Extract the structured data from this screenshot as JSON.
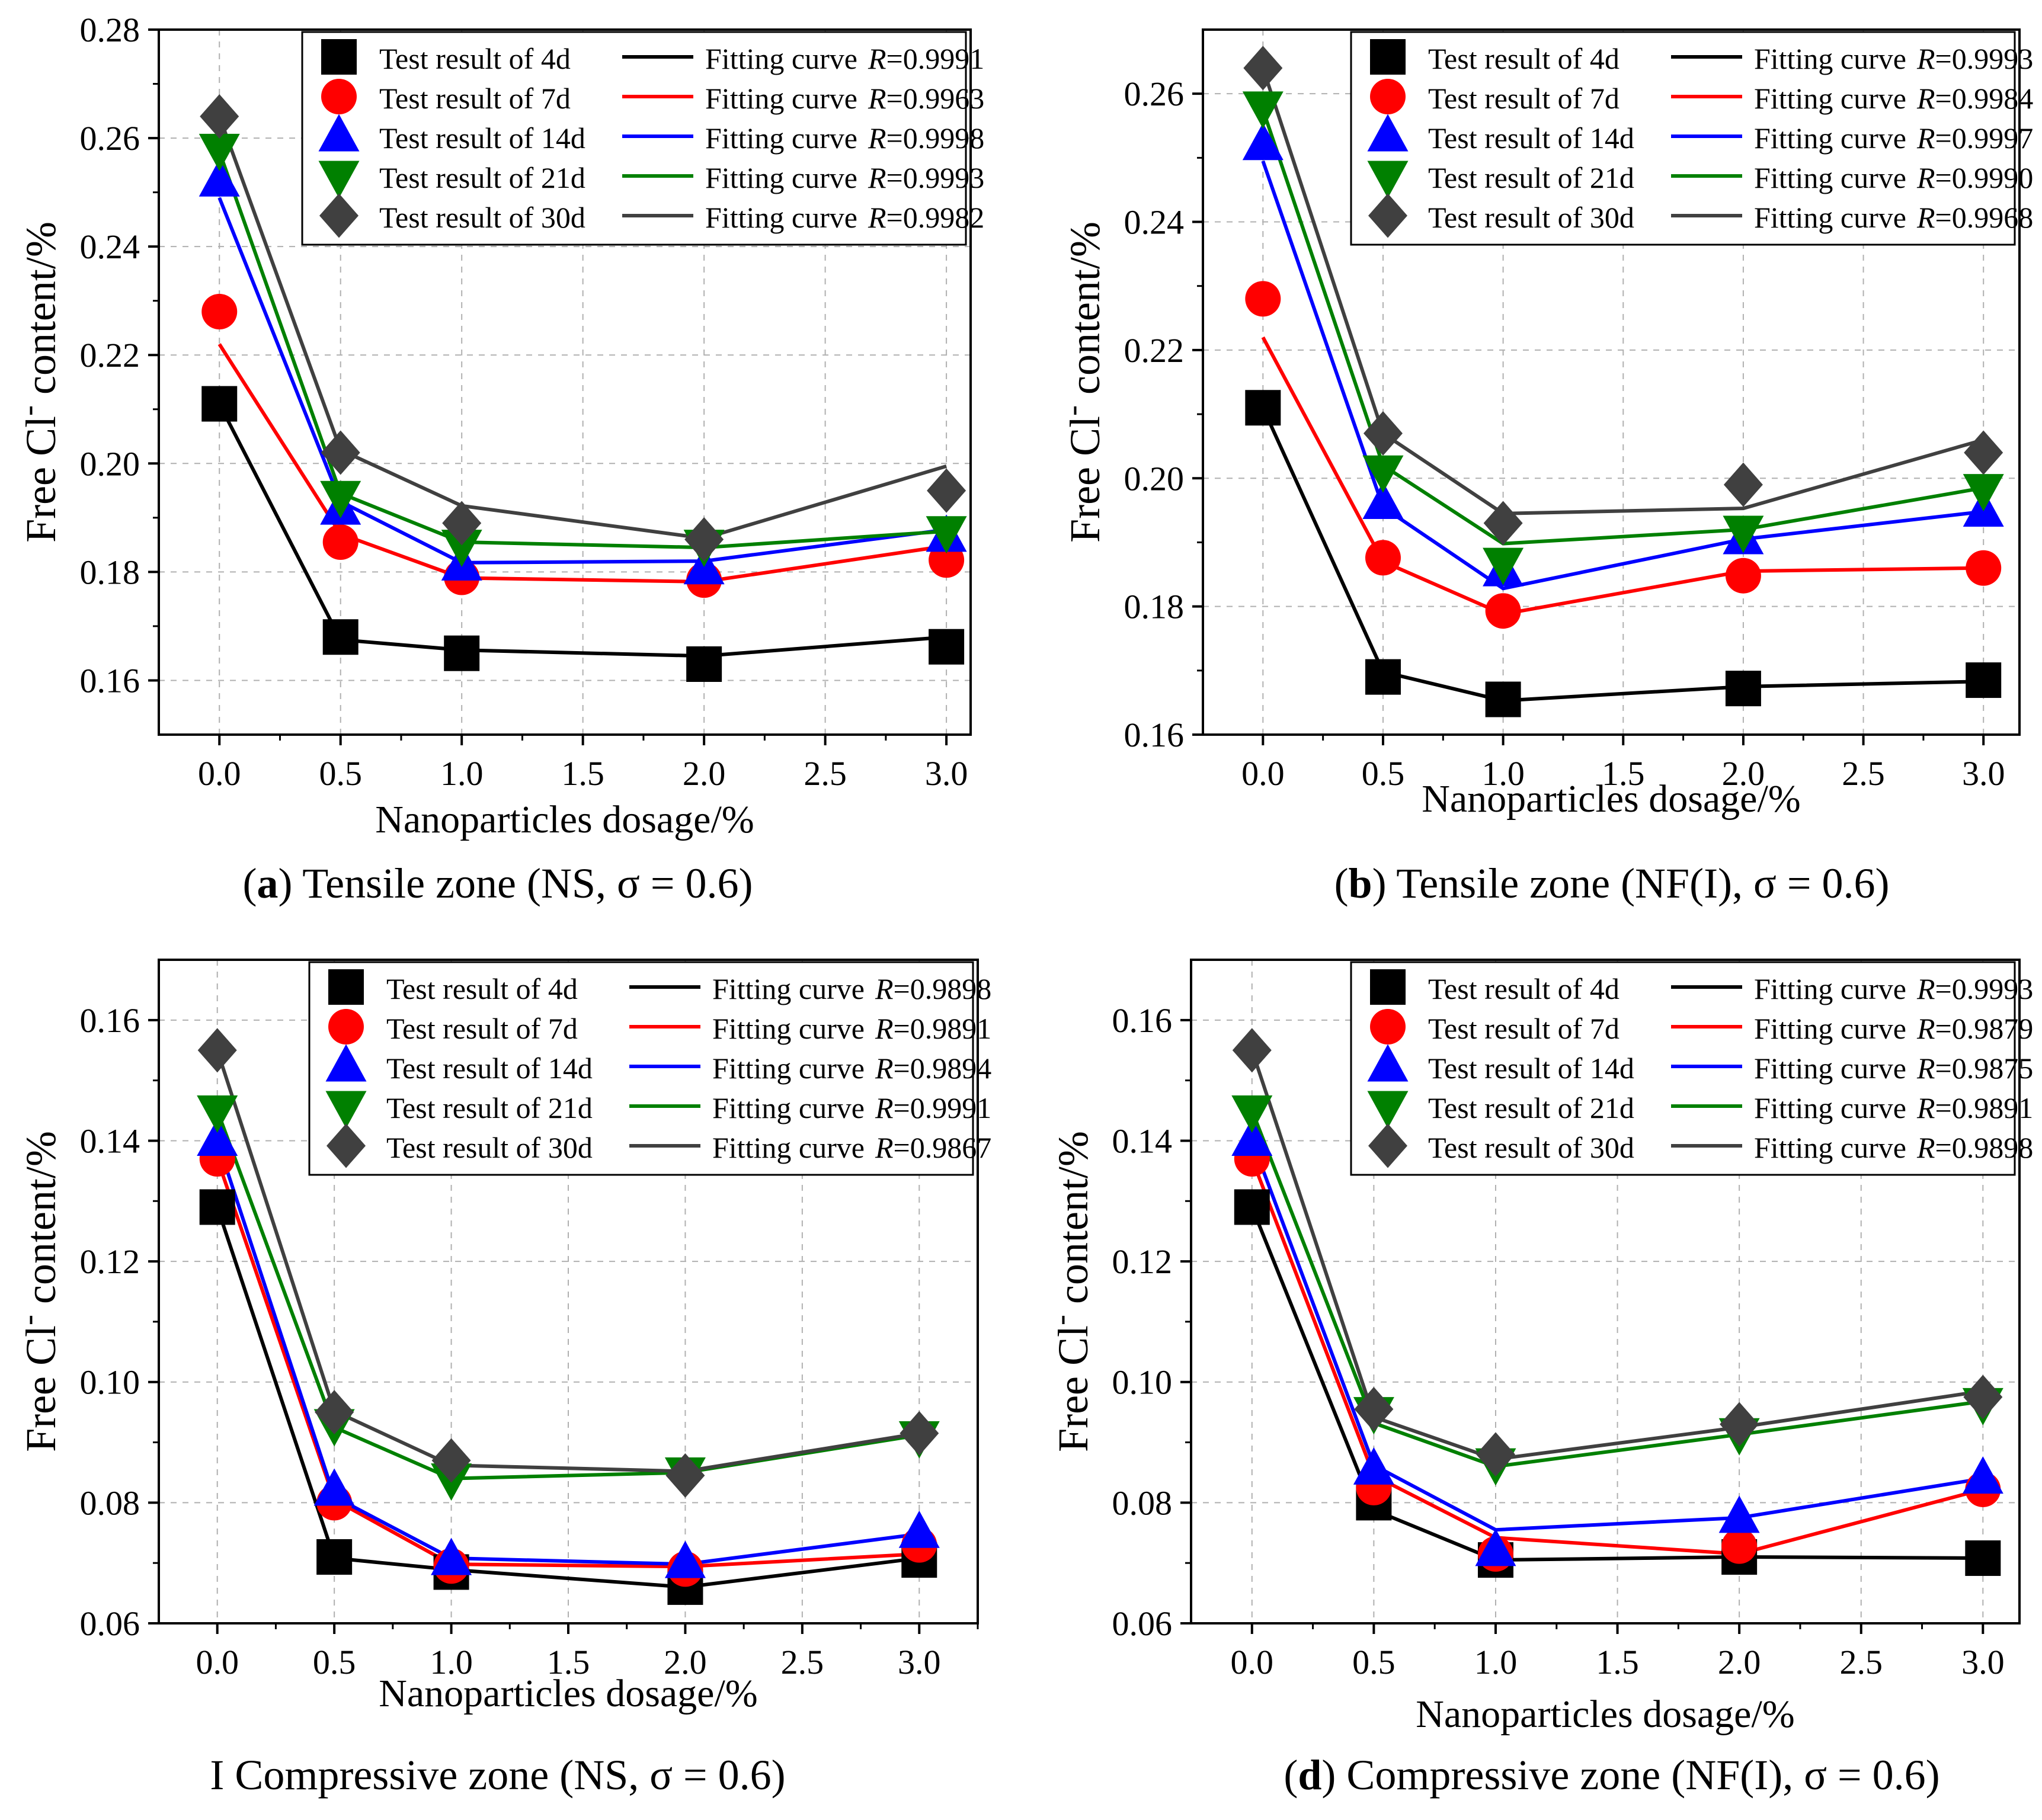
{
  "figure_title": "",
  "chart_data": [
    {
      "id": "a",
      "type": "line",
      "panel_letter": "a",
      "caption_prefix": "(",
      "caption_suffix": ") Tensile zone (NS, σ = 0.6)",
      "xlabel": "Nanoparticles dosage/%",
      "ylabel_main": "Free Cl",
      "ylabel_sup": "-",
      "ylabel_tail": " content/%",
      "xlim": [
        -0.25,
        3.1
      ],
      "ylim": [
        0.15,
        0.28
      ],
      "x_ticks": [
        "0.0",
        "0.5",
        "1.0",
        "1.5",
        "2.0",
        "2.5",
        "3.0"
      ],
      "y_ticks": [
        "0.16",
        "0.18",
        "0.20",
        "0.22",
        "0.24",
        "0.26",
        "0.28"
      ],
      "x": [
        0,
        0.5,
        1,
        2,
        3
      ],
      "series": [
        {
          "name": "Test result of 4d",
          "marker": "square",
          "color": "#000000",
          "values": [
            0.211,
            0.168,
            0.165,
            0.163,
            0.1662
          ],
          "fit_label": "Fitting curve",
          "r_label": "R",
          "r_value": "=0.9991",
          "fit": [
            0.211,
            0.1675,
            0.1656,
            0.1645,
            0.168
          ]
        },
        {
          "name": "Test result of 7d",
          "marker": "circle",
          "color": "#ff0000",
          "values": [
            0.228,
            0.1855,
            0.179,
            0.1785,
            0.1822
          ],
          "fit_label": "Fitting curve",
          "r_label": "R",
          "r_value": "=0.9963",
          "fit": [
            0.222,
            0.187,
            0.1789,
            0.1782,
            0.1848
          ]
        },
        {
          "name": "Test result of 14d",
          "marker": "triangle-up",
          "color": "#0000ff",
          "values": [
            0.252,
            0.1915,
            0.1812,
            0.1805,
            0.1865
          ],
          "fit_label": "Fitting curve",
          "r_label": "R",
          "r_value": "=0.9998",
          "fit": [
            0.249,
            0.193,
            0.1817,
            0.182,
            0.1878
          ]
        },
        {
          "name": "Test result of 21d",
          "marker": "triangle-down",
          "color": "#008000",
          "values": [
            0.258,
            0.194,
            0.185,
            0.185,
            0.1875
          ],
          "fit_label": "Fitting curve",
          "r_label": "R",
          "r_value": "=0.9993",
          "fit": [
            0.2575,
            0.1945,
            0.1855,
            0.1845,
            0.1875
          ]
        },
        {
          "name": "Test result of 30d",
          "marker": "diamond",
          "color": "#404040",
          "values": [
            0.264,
            0.202,
            0.189,
            0.186,
            0.195
          ],
          "fit_label": "Fitting curve",
          "r_label": "R",
          "r_value": "=0.9982",
          "fit": [
            0.264,
            0.2025,
            0.1922,
            0.1862,
            0.1995
          ]
        }
      ]
    },
    {
      "id": "b",
      "type": "line",
      "panel_letter": "b",
      "caption_prefix": "(",
      "caption_suffix": ") Tensile zone (NF(I), σ = 0.6)",
      "xlabel": "Nanoparticles dosage/%",
      "ylabel_main": "Free Cl",
      "ylabel_sup": "-",
      "ylabel_tail": " content/%",
      "xlim": [
        -0.25,
        3.15
      ],
      "ylim": [
        0.16,
        0.27
      ],
      "x_ticks": [
        "0.0",
        "0.5",
        "1.0",
        "1.5",
        "2.0",
        "2.5",
        "3.0"
      ],
      "y_ticks": [
        "0.16",
        "0.18",
        "0.20",
        "0.22",
        "0.24",
        "0.26"
      ],
      "x": [
        0,
        0.5,
        1,
        2,
        3
      ],
      "series": [
        {
          "name": "Test result of 4d",
          "marker": "square",
          "color": "#000000",
          "values": [
            0.211,
            0.169,
            0.1655,
            0.1672,
            0.1685
          ],
          "fit_label": "Fitting curve",
          "r_label": "R",
          "r_value": "=0.9993",
          "fit": [
            0.211,
            0.1698,
            0.1653,
            0.1675,
            0.1683
          ]
        },
        {
          "name": "Test result of 7d",
          "marker": "circle",
          "color": "#ff0000",
          "values": [
            0.228,
            0.1876,
            0.1793,
            0.1848,
            0.186
          ],
          "fit_label": "Fitting curve",
          "r_label": "R",
          "r_value": "=0.9984",
          "fit": [
            0.222,
            0.187,
            0.1788,
            0.1855,
            0.186
          ]
        },
        {
          "name": "Test result of 14d",
          "marker": "triangle-up",
          "color": "#0000ff",
          "values": [
            0.252,
            0.196,
            0.1855,
            0.1905,
            0.1948
          ],
          "fit_label": "Fitting curve",
          "r_label": "R",
          "r_value": "=0.9997",
          "fit": [
            0.2495,
            0.1955,
            0.1828,
            0.1905,
            0.1948
          ]
        },
        {
          "name": "Test result of 21d",
          "marker": "triangle-down",
          "color": "#008000",
          "values": [
            0.258,
            0.2012,
            0.1868,
            0.1918,
            0.1983
          ],
          "fit_label": "Fitting curve",
          "r_label": "R",
          "r_value": "=0.9990",
          "fit": [
            0.2575,
            0.202,
            0.1898,
            0.192,
            0.1985
          ]
        },
        {
          "name": "Test result of 30d",
          "marker": "diamond",
          "color": "#404040",
          "values": [
            0.264,
            0.207,
            0.193,
            0.199,
            0.204
          ],
          "fit_label": "Fitting curve",
          "r_label": "R",
          "r_value": "=0.9968",
          "fit": [
            0.264,
            0.207,
            0.1945,
            0.1953,
            0.206
          ]
        }
      ]
    },
    {
      "id": "c",
      "type": "line",
      "panel_letter": "",
      "caption_prefix": "I",
      "caption_suffix": " Compressive zone (NS, σ = 0.6)",
      "xlabel": "Nanoparticles dosage/%",
      "ylabel_main": "Free Cl",
      "ylabel_sup": "-",
      "ylabel_tail": " content/%",
      "xlim": [
        -0.25,
        3.25
      ],
      "ylim": [
        0.06,
        0.17
      ],
      "x_ticks": [
        "0.0",
        "0.5",
        "1.0",
        "1.5",
        "2.0",
        "2.5",
        "3.0"
      ],
      "y_ticks": [
        "0.06",
        "0.08",
        "0.10",
        "0.12",
        "0.14",
        "0.16"
      ],
      "x": [
        0,
        0.5,
        1,
        2,
        3
      ],
      "series": [
        {
          "name": "Test result of 4d",
          "marker": "square",
          "color": "#000000",
          "values": [
            0.129,
            0.071,
            0.0685,
            0.066,
            0.0705
          ],
          "fit_label": "Fitting curve",
          "r_label": "R",
          "r_value": "=0.9898",
          "fit": [
            0.129,
            0.0708,
            0.0689,
            0.066,
            0.0708
          ]
        },
        {
          "name": "Test result of 7d",
          "marker": "circle",
          "color": "#ff0000",
          "values": [
            0.137,
            0.08,
            0.0695,
            0.069,
            0.073
          ],
          "fit_label": "Fitting curve",
          "r_label": "R",
          "r_value": "=0.9891",
          "fit": [
            0.137,
            0.0805,
            0.0698,
            0.0694,
            0.0715
          ]
        },
        {
          "name": "Test result of 14d",
          "marker": "triangle-up",
          "color": "#0000ff",
          "values": [
            0.14,
            0.082,
            0.0705,
            0.07,
            0.075
          ],
          "fit_label": "Fitting curve",
          "r_label": "R",
          "r_value": "=0.9894",
          "fit": [
            0.14,
            0.081,
            0.0708,
            0.0698,
            0.0748
          ]
        },
        {
          "name": "Test result of 21d",
          "marker": "triangle-down",
          "color": "#008000",
          "values": [
            0.145,
            0.093,
            0.084,
            0.085,
            0.091
          ],
          "fit_label": "Fitting curve",
          "r_label": "R",
          "r_value": "=0.9991",
          "fit": [
            0.145,
            0.0925,
            0.084,
            0.085,
            0.0912
          ]
        },
        {
          "name": "Test result of 30d",
          "marker": "diamond",
          "color": "#404040",
          "values": [
            0.155,
            0.095,
            0.087,
            0.0845,
            0.0915
          ],
          "fit_label": "Fitting curve",
          "r_label": "R",
          "r_value": "=0.9867",
          "fit": [
            0.155,
            0.0952,
            0.0862,
            0.0852,
            0.0915
          ]
        }
      ]
    },
    {
      "id": "d",
      "type": "line",
      "panel_letter": "d",
      "caption_prefix": "(",
      "caption_suffix": ") Compressive zone (NF(I), σ = 0.6)",
      "xlabel": "Nanoparticles dosage/%",
      "ylabel_main": "Free Cl",
      "ylabel_sup": "-",
      "ylabel_tail": " content/%",
      "xlim": [
        -0.25,
        3.15
      ],
      "ylim": [
        0.06,
        0.17
      ],
      "x_ticks": [
        "0.0",
        "0.5",
        "1.0",
        "1.5",
        "2.0",
        "2.5",
        "3.0"
      ],
      "y_ticks": [
        "0.06",
        "0.08",
        "0.10",
        "0.12",
        "0.14",
        "0.16"
      ],
      "x": [
        0,
        0.5,
        1,
        2,
        3
      ],
      "series": [
        {
          "name": "Test result of 4d",
          "marker": "square",
          "color": "#000000",
          "values": [
            0.129,
            0.08,
            0.0705,
            0.071,
            0.0708
          ],
          "fit_label": "Fitting curve",
          "r_label": "R",
          "r_value": "=0.9993",
          "fit": [
            0.129,
            0.0788,
            0.0705,
            0.071,
            0.0708
          ]
        },
        {
          "name": "Test result of 7d",
          "marker": "circle",
          "color": "#ff0000",
          "values": [
            0.137,
            0.0825,
            0.0715,
            0.0728,
            0.0822
          ],
          "fit_label": "Fitting curve",
          "r_label": "R",
          "r_value": "=0.9879",
          "fit": [
            0.137,
            0.0845,
            0.0742,
            0.0715,
            0.0822
          ]
        },
        {
          "name": "Test result of 14d",
          "marker": "triangle-up",
          "color": "#0000ff",
          "values": [
            0.14,
            0.0855,
            0.072,
            0.0775,
            0.084
          ],
          "fit_label": "Fitting curve",
          "r_label": "R",
          "r_value": "=0.9875",
          "fit": [
            0.14,
            0.0862,
            0.0755,
            0.0775,
            0.084
          ]
        },
        {
          "name": "Test result of 21d",
          "marker": "triangle-down",
          "color": "#008000",
          "values": [
            0.145,
            0.095,
            0.0865,
            0.0915,
            0.0965
          ],
          "fit_label": "Fitting curve",
          "r_label": "R",
          "r_value": "=0.9891",
          "fit": [
            0.145,
            0.0932,
            0.086,
            0.0913,
            0.0968
          ]
        },
        {
          "name": "Test result of 30d",
          "marker": "diamond",
          "color": "#404040",
          "values": [
            0.155,
            0.0955,
            0.088,
            0.093,
            0.0975
          ],
          "fit_label": "Fitting curve",
          "r_label": "R",
          "r_value": "=0.9898",
          "fit": [
            0.155,
            0.0942,
            0.0872,
            0.0925,
            0.0985
          ]
        }
      ]
    }
  ]
}
